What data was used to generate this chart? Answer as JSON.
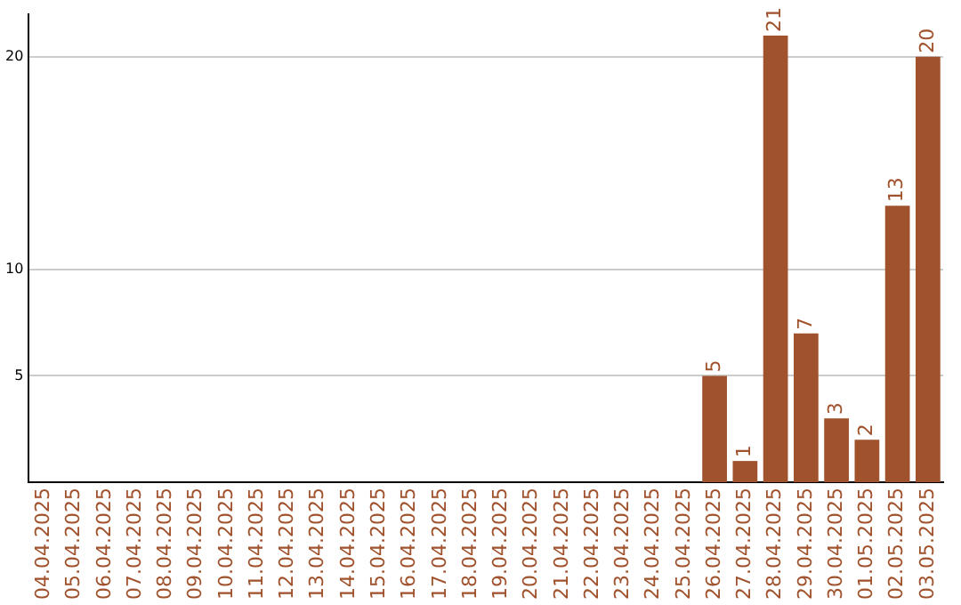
{
  "chart_data": {
    "type": "bar",
    "categories": [
      "04.04.2025",
      "05.04.2025",
      "06.04.2025",
      "07.04.2025",
      "08.04.2025",
      "09.04.2025",
      "10.04.2025",
      "11.04.2025",
      "12.04.2025",
      "13.04.2025",
      "14.04.2025",
      "15.04.2025",
      "16.04.2025",
      "17.04.2025",
      "18.04.2025",
      "19.04.2025",
      "20.04.2025",
      "21.04.2025",
      "22.04.2025",
      "23.04.2025",
      "24.04.2025",
      "25.04.2025",
      "26.04.2025",
      "27.04.2025",
      "28.04.2025",
      "29.04.2025",
      "30.04.2025",
      "01.05.2025",
      "02.05.2025",
      "03.05.2025"
    ],
    "values": [
      0,
      0,
      0,
      0,
      0,
      0,
      0,
      0,
      0,
      0,
      0,
      0,
      0,
      0,
      0,
      0,
      0,
      0,
      0,
      0,
      0,
      0,
      5,
      1,
      21,
      7,
      3,
      2,
      13,
      20
    ],
    "value_labels": [
      null,
      null,
      null,
      null,
      null,
      null,
      null,
      null,
      null,
      null,
      null,
      null,
      null,
      null,
      null,
      null,
      null,
      null,
      null,
      null,
      null,
      null,
      "5",
      "1",
      "21",
      "7",
      "3",
      "2",
      "13",
      "20"
    ],
    "color": "#a0522d",
    "ylim": [
      0,
      22
    ],
    "yticks": [
      5,
      10,
      20
    ],
    "grid": "y",
    "legend": false
  }
}
